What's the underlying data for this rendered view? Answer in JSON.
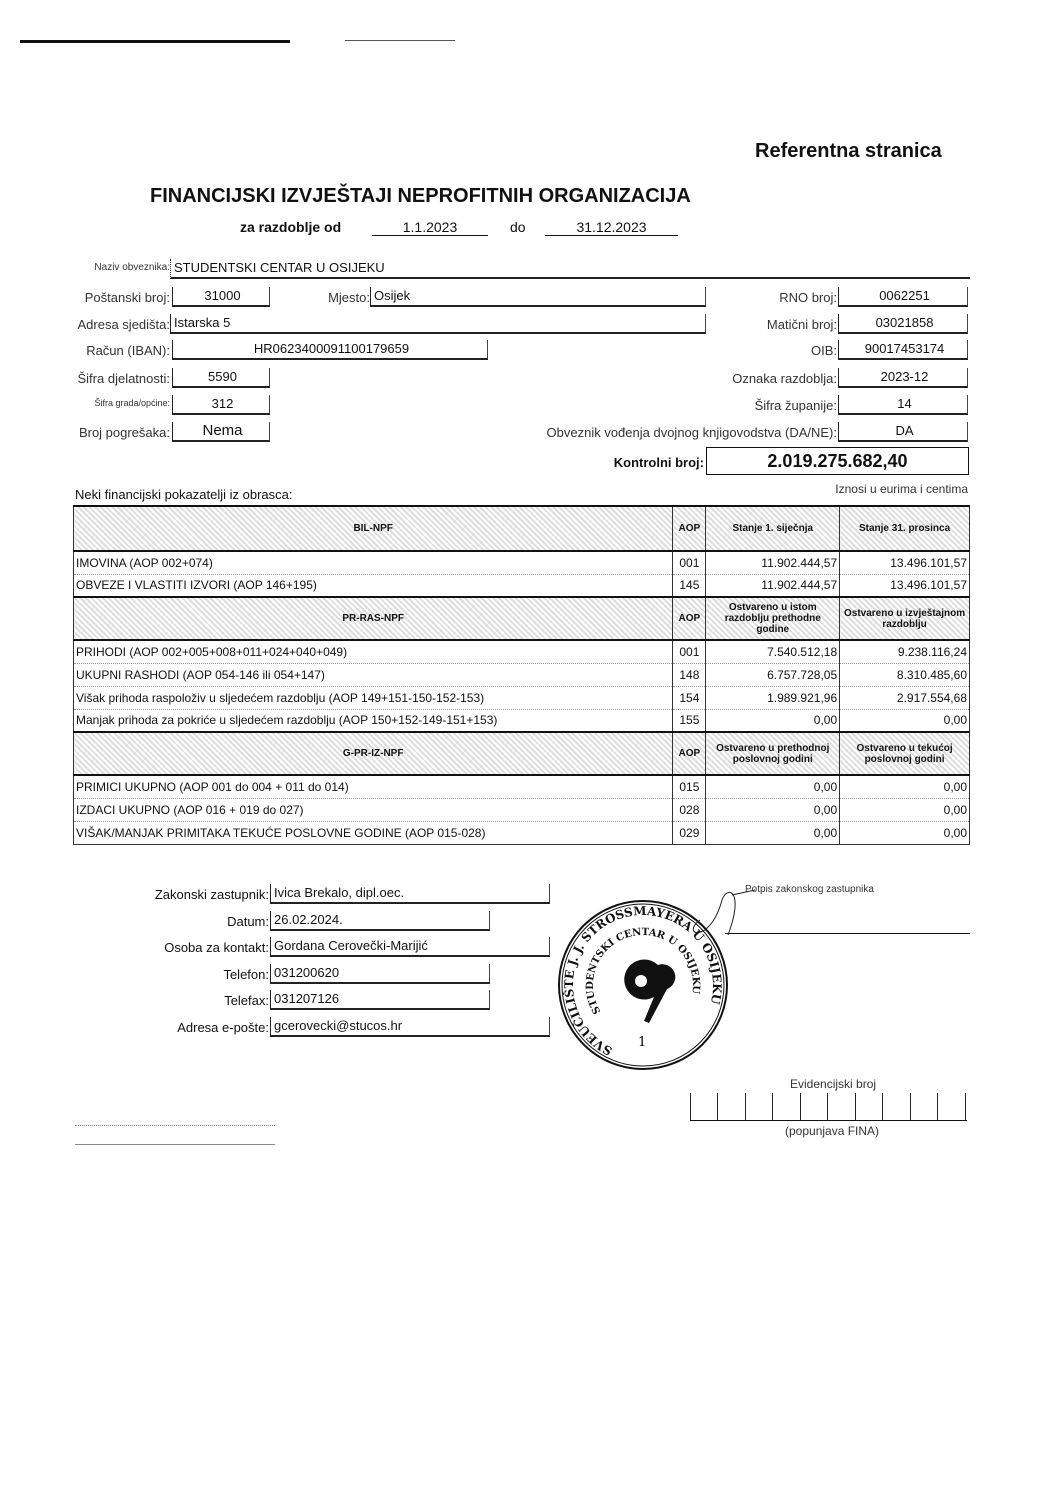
{
  "header": {
    "ref": "Referentna stranica",
    "title": "FINANCIJSKI IZVJEŠTAJI NEPROFITNIH ORGANIZACIJA",
    "period_label": "za razdoblje od",
    "period_from": "1.1.2023",
    "period_to_label": "do",
    "period_to": "31.12.2023"
  },
  "info": {
    "naziv_label": "Naziv obveznika:",
    "naziv": "STUDENTSKI CENTAR U OSIJEKU",
    "postanski_label": "Poštanski broj:",
    "postanski": "31000",
    "mjesto_label": "Mjesto:",
    "mjesto": "Osijek",
    "adresa_label": "Adresa sjedišta:",
    "adresa": "Istarska 5",
    "iban_label": "Račun (IBAN):",
    "iban": "HR0623400091100179659",
    "djelatnost_label": "Šifra djelatnosti:",
    "djelatnost": "5590",
    "grad_label": "Šifra grada/općine:",
    "grad": "312",
    "pogreske_label": "Broj pogrešaka:",
    "pogreske": "Nema",
    "rno_label": "RNO broj:",
    "rno": "0062251",
    "maticni_label": "Matični broj:",
    "maticni": "03021858",
    "oib_label": "OIB:",
    "oib": "90017453174",
    "oznaka_label": "Oznaka razdoblja:",
    "oznaka": "2023-12",
    "zupanija_label": "Šifra županije:",
    "zupanija": "14",
    "dvojno_label": "Obveznik vođenja dvojnog knjigovodstva (DA/NE):",
    "dvojno": "DA",
    "kontrolni_label": "Kontrolni broj:",
    "kontrolni": "2.019.275.682,40"
  },
  "indicators": {
    "title": "Neki financijski pokazatelji iz obrasca:",
    "unit": "Iznosi u eurima i centima",
    "sections": [
      {
        "name": "BIL-NPF",
        "aop": "AOP",
        "col1": "Stanje 1. siječnja",
        "col2": "Stanje 31. prosinca",
        "rows": [
          {
            "label": "IMOVINA (AOP 002+074)",
            "aop": "001",
            "v1": "11.902.444,57",
            "v2": "13.496.101,57"
          },
          {
            "label": "OBVEZE I VLASTITI IZVORI (AOP 146+195)",
            "aop": "145",
            "v1": "11.902.444,57",
            "v2": "13.496.101,57"
          }
        ]
      },
      {
        "name": "PR-RAS-NPF",
        "aop": "AOP",
        "col1": "Ostvareno u istom razdoblju prethodne godine",
        "col2": "Ostvareno u izvještajnom razdoblju",
        "rows": [
          {
            "label": "PRIHODI (AOP 002+005+008+011+024+040+049)",
            "aop": "001",
            "v1": "7.540.512,18",
            "v2": "9.238.116,24"
          },
          {
            "label": "UKUPNI RASHODI (AOP 054-146 ili 054+147)",
            "aop": "148",
            "v1": "6.757.728,05",
            "v2": "8.310.485,60"
          },
          {
            "label": "Višak prihoda raspoloživ u sljedećem razdoblju (AOP 149+151-150-152-153)",
            "aop": "154",
            "v1": "1.989.921,96",
            "v2": "2.917.554,68"
          },
          {
            "label": "Manjak prihoda za pokriće u sljedećem razdoblju (AOP 150+152-149-151+153)",
            "aop": "155",
            "v1": "0,00",
            "v2": "0,00"
          }
        ]
      },
      {
        "name": "G-PR-IZ-NPF",
        "aop": "AOP",
        "col1": "Ostvareno u prethodnoj poslovnoj godini",
        "col2": "Ostvareno u tekućoj poslovnoj godini",
        "rows": [
          {
            "label": "PRIMICI UKUPNO  (AOP 001 do 004 + 011 do 014)",
            "aop": "015",
            "v1": "0,00",
            "v2": "0,00"
          },
          {
            "label": "IZDACI UKUPNO (AOP 016 + 019 do 027)",
            "aop": "028",
            "v1": "0,00",
            "v2": "0,00"
          },
          {
            "label": "VIŠAK/MANJAK PRIMITAKA TEKUĆE POSLOVNE GODINE (AOP 015-028)",
            "aop": "029",
            "v1": "0,00",
            "v2": "0,00"
          }
        ]
      }
    ]
  },
  "contact": {
    "zastupnik_label": "Zakonski zastupnik:",
    "zastupnik": "Ivica Brekalo, dipl.oec.",
    "datum_label": "Datum:",
    "datum": "26.02.2024.",
    "osoba_label": "Osoba za kontakt:",
    "osoba": "Gordana Cerovečki-Marijić",
    "telefon_label": "Telefon:",
    "telefon": "031200620",
    "telefax_label": "Telefax:",
    "telefax": "031207126",
    "email_label": "Adresa e-pošte:",
    "email": "gcerovecki@stucos.hr",
    "potpis_label": "Potpis zakonskog zastupnika"
  },
  "stamp": {
    "outer": "SVEUČILIŠTE J. J. STROSSMAYERA U OSIJEKU",
    "inner": "STUDENTSKI CENTAR U OSIJEKU",
    "number": "1"
  },
  "evidencija": {
    "label": "Evidencijski broj",
    "note": "(popunjava FINA)"
  }
}
